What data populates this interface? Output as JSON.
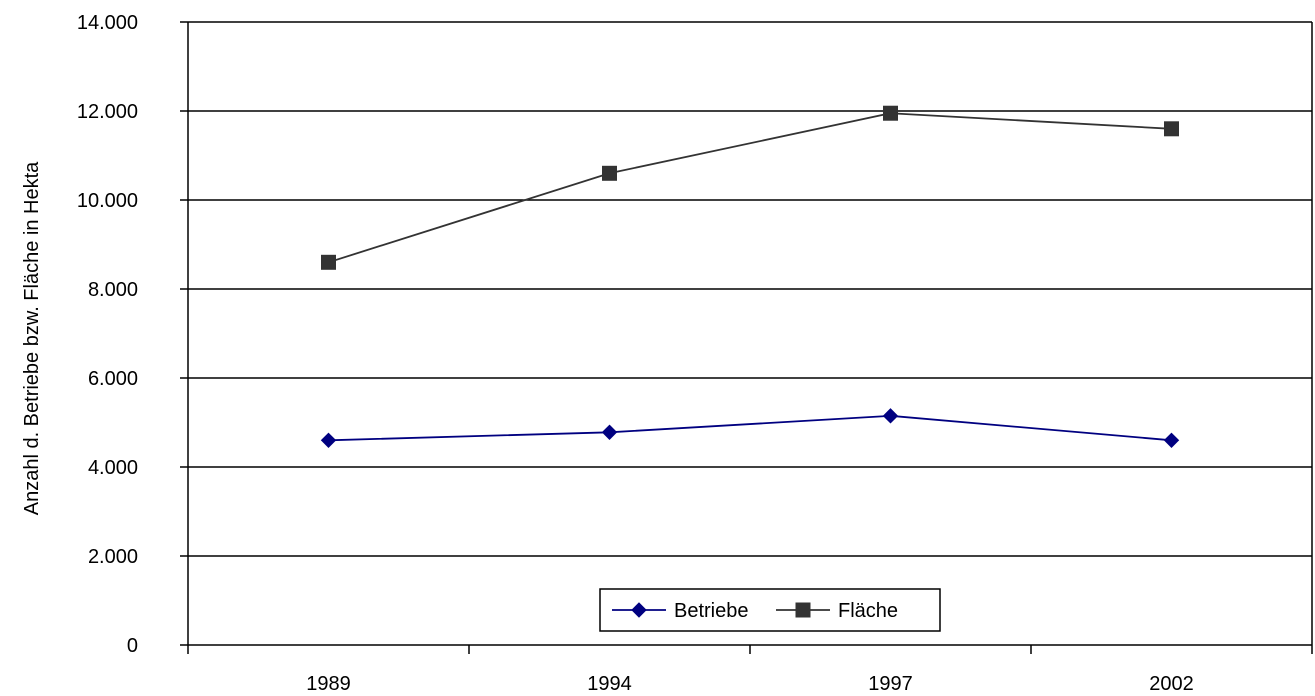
{
  "chart_data": {
    "type": "line",
    "title": "",
    "xlabel": "",
    "ylabel": "Anzahl d. Betriebe bzw. Fläche in Hekta",
    "categories": [
      "1989",
      "1994",
      "1997",
      "2002"
    ],
    "ylim": [
      0,
      14000
    ],
    "y_ticks": [
      0,
      2000,
      4000,
      6000,
      8000,
      10000,
      12000,
      14000
    ],
    "y_tick_labels": [
      "0",
      "2.000",
      "4.000",
      "6.000",
      "8.000",
      "10.000",
      "12.000",
      "14.000"
    ],
    "grid": "horizontal",
    "legend_position": "bottom-center",
    "series": [
      {
        "name": "Betriebe",
        "values": [
          4600,
          4780,
          5150,
          4600
        ],
        "color": "#000080",
        "marker": "diamond"
      },
      {
        "name": "Fläche",
        "values": [
          8600,
          10600,
          11950,
          11600
        ],
        "color": "#333333",
        "marker": "square"
      }
    ]
  }
}
